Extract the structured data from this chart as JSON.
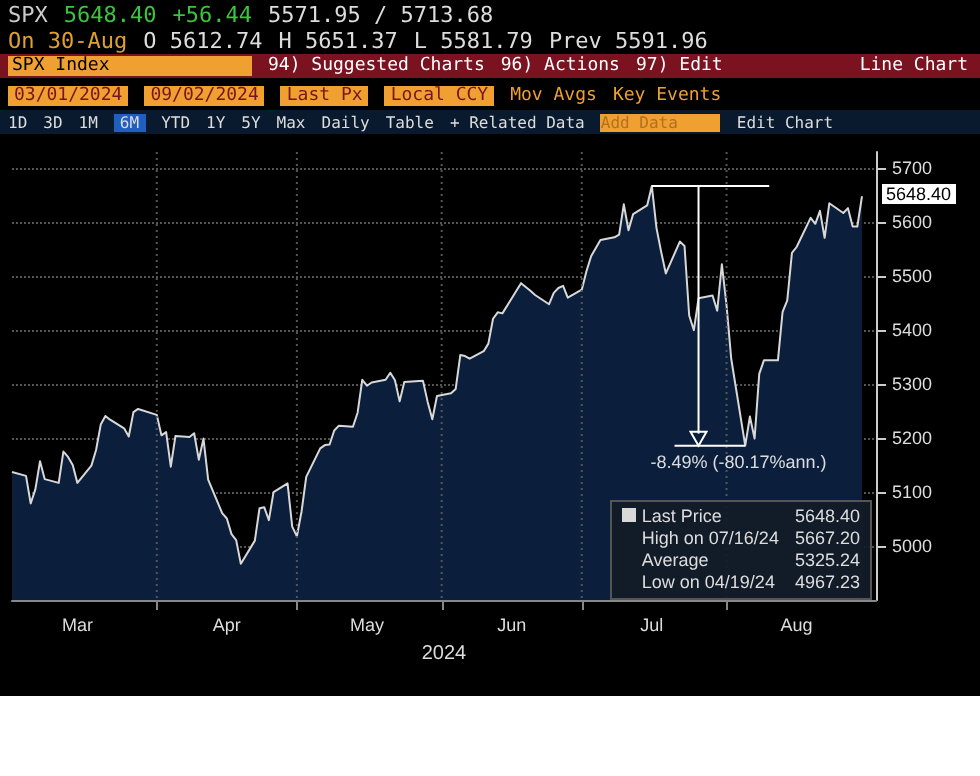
{
  "chart_data": {
    "type": "area",
    "xlabel": "2024",
    "x": [
      "2024-03-01",
      "2024-03-04",
      "2024-03-05",
      "2024-03-06",
      "2024-03-07",
      "2024-03-08",
      "2024-03-11",
      "2024-03-12",
      "2024-03-13",
      "2024-03-14",
      "2024-03-15",
      "2024-03-18",
      "2024-03-19",
      "2024-03-20",
      "2024-03-21",
      "2024-03-22",
      "2024-03-25",
      "2024-03-26",
      "2024-03-27",
      "2024-03-28",
      "2024-04-01",
      "2024-04-02",
      "2024-04-03",
      "2024-04-04",
      "2024-04-05",
      "2024-04-08",
      "2024-04-09",
      "2024-04-10",
      "2024-04-11",
      "2024-04-12",
      "2024-04-15",
      "2024-04-16",
      "2024-04-17",
      "2024-04-18",
      "2024-04-19",
      "2024-04-22",
      "2024-04-23",
      "2024-04-24",
      "2024-04-25",
      "2024-04-26",
      "2024-04-29",
      "2024-04-30",
      "2024-05-01",
      "2024-05-02",
      "2024-05-03",
      "2024-05-06",
      "2024-05-07",
      "2024-05-08",
      "2024-05-09",
      "2024-05-10",
      "2024-05-13",
      "2024-05-14",
      "2024-05-15",
      "2024-05-16",
      "2024-05-17",
      "2024-05-20",
      "2024-05-21",
      "2024-05-22",
      "2024-05-23",
      "2024-05-24",
      "2024-05-28",
      "2024-05-29",
      "2024-05-30",
      "2024-05-31",
      "2024-06-03",
      "2024-06-04",
      "2024-06-05",
      "2024-06-06",
      "2024-06-07",
      "2024-06-10",
      "2024-06-11",
      "2024-06-12",
      "2024-06-13",
      "2024-06-14",
      "2024-06-17",
      "2024-06-18",
      "2024-06-20",
      "2024-06-21",
      "2024-06-24",
      "2024-06-25",
      "2024-06-26",
      "2024-06-27",
      "2024-06-28",
      "2024-07-01",
      "2024-07-02",
      "2024-07-03",
      "2024-07-05",
      "2024-07-08",
      "2024-07-09",
      "2024-07-10",
      "2024-07-11",
      "2024-07-12",
      "2024-07-15",
      "2024-07-16",
      "2024-07-17",
      "2024-07-18",
      "2024-07-19",
      "2024-07-22",
      "2024-07-23",
      "2024-07-24",
      "2024-07-25",
      "2024-07-26",
      "2024-07-29",
      "2024-07-30",
      "2024-07-31",
      "2024-08-01",
      "2024-08-02",
      "2024-08-05",
      "2024-08-06",
      "2024-08-07",
      "2024-08-08",
      "2024-08-09",
      "2024-08-12",
      "2024-08-13",
      "2024-08-14",
      "2024-08-15",
      "2024-08-16",
      "2024-08-19",
      "2024-08-20",
      "2024-08-21",
      "2024-08-22",
      "2024-08-23",
      "2024-08-26",
      "2024-08-27",
      "2024-08-28",
      "2024-08-29",
      "2024-08-30"
    ],
    "series": [
      {
        "name": "Last Price",
        "color": "#d8d8d8",
        "values": [
          5137,
          5130,
          5079,
          5105,
          5157,
          5124,
          5117,
          5175,
          5165,
          5150,
          5117,
          5149,
          5178,
          5225,
          5241,
          5234,
          5218,
          5203,
          5248,
          5254,
          5243,
          5205,
          5211,
          5147,
          5204,
          5202,
          5209,
          5160,
          5199,
          5123,
          5061,
          5051,
          5022,
          5011,
          4967,
          5010,
          5070,
          5072,
          5048,
          5100,
          5116,
          5036,
          5018,
          5064,
          5128,
          5181,
          5187,
          5188,
          5214,
          5223,
          5221,
          5247,
          5308,
          5297,
          5303,
          5308,
          5321,
          5307,
          5268,
          5304,
          5306,
          5267,
          5235,
          5278,
          5283,
          5291,
          5354,
          5352,
          5347,
          5361,
          5375,
          5421,
          5433,
          5431,
          5473,
          5487,
          5473,
          5465,
          5448,
          5469,
          5478,
          5482,
          5460,
          5475,
          5509,
          5537,
          5567,
          5572,
          5577,
          5633,
          5585,
          5615,
          5631,
          5667,
          5589,
          5545,
          5505,
          5564,
          5556,
          5427,
          5400,
          5459,
          5464,
          5436,
          5522,
          5446,
          5347,
          5186,
          5240,
          5199,
          5319,
          5344,
          5344,
          5434,
          5455,
          5543,
          5554,
          5608,
          5597,
          5621,
          5571,
          5635,
          5617,
          5626,
          5592,
          5592,
          5648
        ]
      }
    ],
    "xlim": [
      "2024-03-01",
      "2024-09-02"
    ],
    "xticks": [
      {
        "value": "2024-03-15",
        "label": "Mar"
      },
      {
        "value": "2024-04-01",
        "label": null
      },
      {
        "value": "2024-04-16",
        "label": "Apr"
      },
      {
        "value": "2024-05-01",
        "label": null
      },
      {
        "value": "2024-05-16",
        "label": "May"
      },
      {
        "value": "2024-06-01",
        "label": null
      },
      {
        "value": "2024-06-16",
        "label": "Jun"
      },
      {
        "value": "2024-07-01",
        "label": null
      },
      {
        "value": "2024-07-16",
        "label": "Jul"
      },
      {
        "value": "2024-08-01",
        "label": null
      },
      {
        "value": "2024-08-16",
        "label": "Aug"
      }
    ],
    "ylim": [
      4900,
      5730
    ],
    "yticks": [
      5000,
      5100,
      5200,
      5300,
      5400,
      5500,
      5600,
      5700
    ],
    "grid": true,
    "legend": "bottom right",
    "annotations": [
      "SPX",
      "5648.40",
      "+56.44",
      "5571.95 / 5713.68",
      "On 30-Aug",
      "O 5612.74",
      "H 5651.37",
      "L 5581.79",
      "Prev 5591.96",
      "SPX Index",
      "94) Suggested Charts",
      "96) Actions",
      "97) Edit",
      "Line Chart",
      "03/01/2024",
      "09/02/2024",
      "Last Px",
      "Local CCY",
      "Mov Avgs",
      "Key Events",
      "1D",
      "3D",
      "1M",
      "6M",
      "YTD",
      "1Y",
      "5Y",
      "Max",
      "Daily",
      "Table",
      "+ Related Data",
      "Add Data",
      "Edit Chart",
      {
        "text": "-8.49% (-80.17%ann.)",
        "x": "2024-08-05",
        "y": 5186
      },
      "5648.40",
      "High on 07/16/24",
      "5667.20",
      "Average",
      "5325.24",
      "Low on 04/19/24",
      "4967.23",
      {
        "text": "5648.40",
        "x": "2024-08-30",
        "y": 5648.4
      }
    ]
  }
}
